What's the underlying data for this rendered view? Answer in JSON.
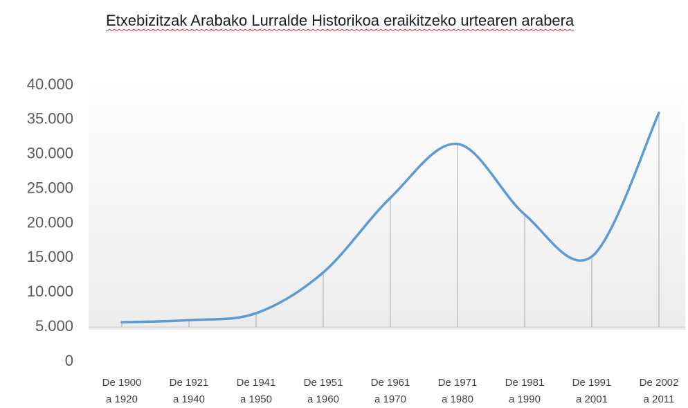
{
  "chart_data": {
    "type": "line",
    "title": "Etxebizitzak Arabako Lurralde Historikoa eraikitzeko urtearen arabera",
    "categories": [
      [
        "De 1900",
        "a 1920"
      ],
      [
        "De 1921",
        "a 1940"
      ],
      [
        "De 1941",
        "a 1950"
      ],
      [
        "De 1951",
        "a 1960"
      ],
      [
        "De 1961",
        "a 1970"
      ],
      [
        "De 1971",
        "a 1980"
      ],
      [
        "De 1981",
        "a 1990"
      ],
      [
        "De 1991",
        "a 2001"
      ],
      [
        "De 2002",
        "a 2011"
      ]
    ],
    "series": [
      {
        "name": null,
        "color": "#5b9bd5",
        "values": [
          5700,
          6000,
          7000,
          12900,
          23700,
          31500,
          21300,
          15200,
          36000
        ]
      }
    ],
    "ylim": [
      0,
      40000
    ],
    "yticks": [
      0,
      {
        "value": 5000,
        "label": "5.000"
      },
      {
        "value": 10000,
        "label": "10.000"
      },
      {
        "value": 15000,
        "label": "15.000"
      },
      {
        "value": 20000,
        "label": "20.000"
      },
      {
        "value": 25000,
        "label": "25.000"
      },
      {
        "value": 30000,
        "label": "30.000"
      },
      {
        "value": 35000,
        "label": "35.000"
      },
      {
        "value": 40000,
        "label": "40.000"
      }
    ],
    "xaxis_at": 5000,
    "smooth": true,
    "drop_lines": true,
    "grid": false
  }
}
